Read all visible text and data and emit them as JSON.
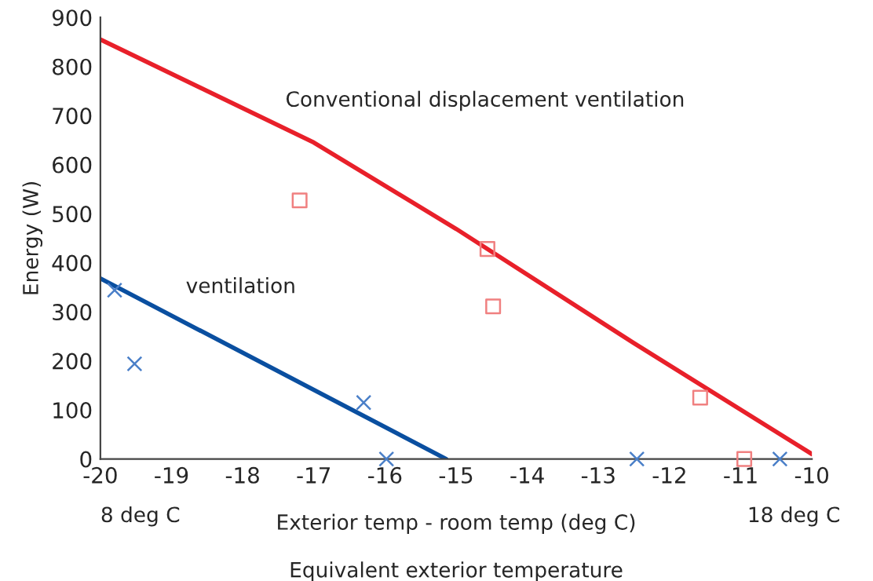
{
  "chart_data": {
    "type": "line",
    "xlabel": "Exterior temp - room temp (deg C)",
    "ylabel": "Energy (W)",
    "xlim": [
      -20,
      -10
    ],
    "xticks": [
      -20,
      -19,
      -18,
      -17,
      -16,
      -15,
      -14,
      -13,
      -12,
      -11,
      -10
    ],
    "ylim": [
      0,
      900
    ],
    "yticks": [
      0,
      100,
      200,
      300,
      400,
      500,
      600,
      700,
      800,
      900
    ],
    "grid": false,
    "legend": false,
    "series": [
      {
        "name": "Conventional displacement ventilation",
        "color": "#e8202a",
        "marker": "none",
        "line_style": "solid",
        "x": [
          -20,
          -17,
          -15,
          -12.5,
          -10
        ],
        "values": [
          855,
          645,
          469,
          236,
          10
        ]
      },
      {
        "name": "ventilation",
        "color": "#0a4fa0",
        "marker": "none",
        "line_style": "solid",
        "x": [
          -20,
          -15.14
        ],
        "values": [
          368,
          0
        ]
      },
      {
        "type": "scatter",
        "color": "#f08080",
        "marker": "square",
        "x": [
          -17.2,
          -14.56,
          -14.48,
          -11.57,
          -10.95
        ],
        "values": [
          527,
          428,
          311,
          125,
          0
        ]
      },
      {
        "type": "scatter",
        "color": "#4a7fc8",
        "marker": "cross",
        "x": [
          -19.8,
          -19.52,
          -16.3,
          -15.98,
          -12.46,
          -10.45
        ],
        "values": [
          344,
          194,
          115,
          0,
          0,
          0
        ]
      }
    ],
    "annotations": [
      "8 deg C",
      "18 deg C",
      "Equivalent exterior temperature"
    ]
  }
}
